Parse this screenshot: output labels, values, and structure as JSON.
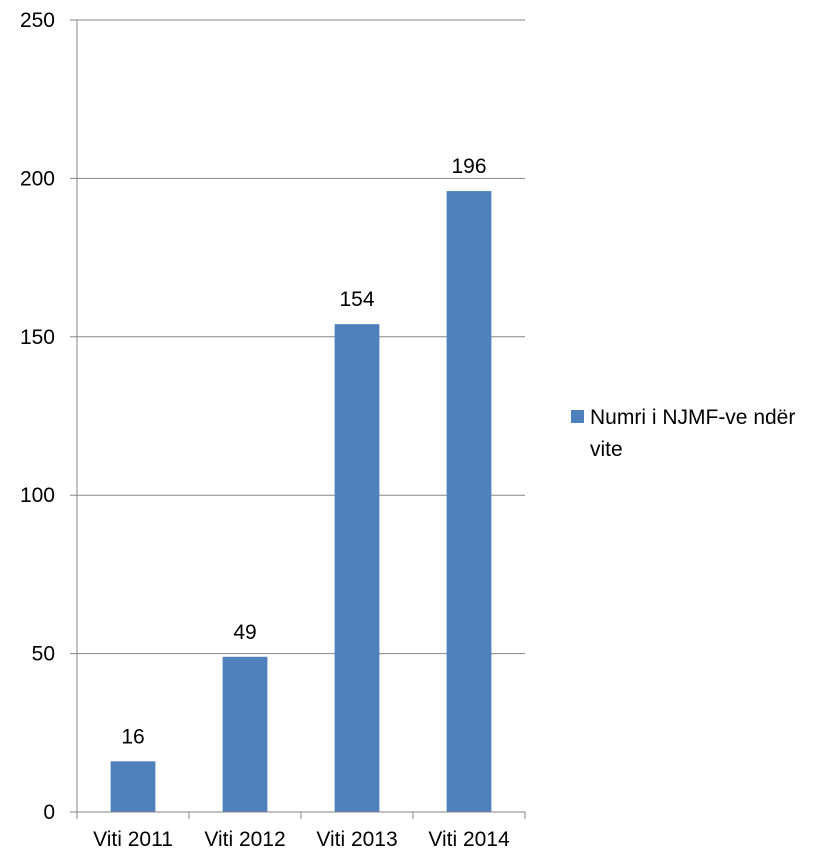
{
  "chart_data": {
    "type": "bar",
    "categories": [
      "Viti 2011",
      "Viti 2012",
      "Viti 2013",
      "Viti 2014"
    ],
    "series": [
      {
        "name": "Numri i NJMF-ve ndër vite",
        "values": [
          16,
          49,
          154,
          196
        ],
        "color": "#4f81bd"
      }
    ],
    "data_labels": [
      "16",
      "49",
      "154",
      "196"
    ],
    "ylim": [
      0,
      250
    ],
    "yticks": [
      0,
      50,
      100,
      150,
      200,
      250
    ],
    "grid": true,
    "legend": {
      "position": "right",
      "lines": [
        "Numri i NJMF-ve ndër",
        "vite"
      ]
    },
    "colors": {
      "bar": "#4f81bd",
      "grid": "#868686",
      "axis": "#868686"
    }
  }
}
